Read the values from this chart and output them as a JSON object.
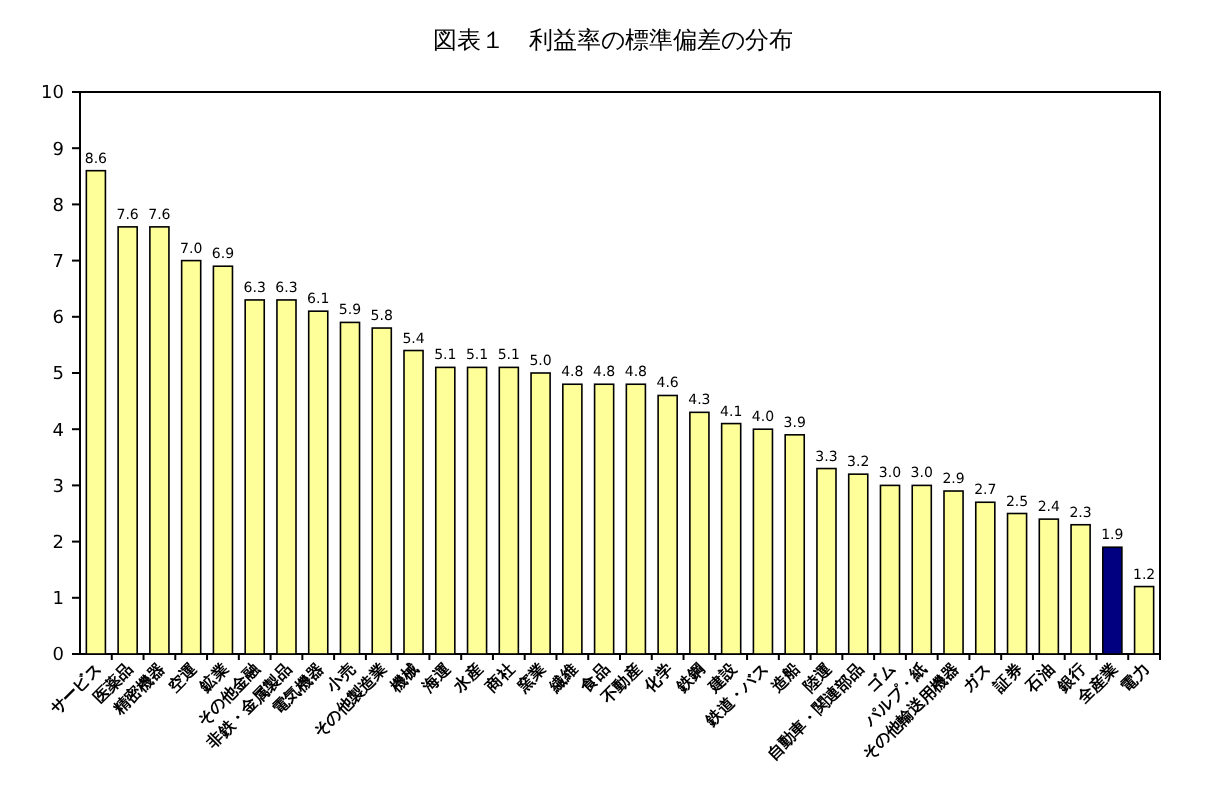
{
  "chart_data": {
    "type": "bar",
    "title": "図表１　利益率の標準偏差の分布",
    "categories": [
      "サービス",
      "医薬品",
      "精密機器",
      "空運",
      "鉱業",
      "その他金融",
      "非鉄・金属製品",
      "電気機器",
      "小売",
      "その他製造業",
      "機械",
      "海運",
      "水産",
      "商社",
      "窯業",
      "繊維",
      "食品",
      "不動産",
      "化学",
      "鉄鋼",
      "建設",
      "鉄道・バス",
      "造船",
      "陸運",
      "自動車・関連部品",
      "ゴム",
      "パルプ・紙",
      "その他輸送用機器",
      "ガス",
      "証券",
      "石油",
      "銀行",
      "全産業",
      "電力"
    ],
    "values": [
      8.6,
      7.6,
      7.6,
      7.0,
      6.9,
      6.3,
      6.3,
      6.1,
      5.9,
      5.8,
      5.4,
      5.1,
      5.1,
      5.1,
      5.0,
      4.8,
      4.8,
      4.8,
      4.6,
      4.3,
      4.1,
      4.0,
      3.9,
      3.3,
      3.2,
      3.0,
      3.0,
      2.9,
      2.7,
      2.5,
      2.4,
      2.3,
      1.9,
      1.2
    ],
    "colors": [
      "#ffff99",
      "#ffff99",
      "#ffff99",
      "#ffff99",
      "#ffff99",
      "#ffff99",
      "#ffff99",
      "#ffff99",
      "#ffff99",
      "#ffff99",
      "#ffff99",
      "#ffff99",
      "#ffff99",
      "#ffff99",
      "#ffff99",
      "#ffff99",
      "#ffff99",
      "#ffff99",
      "#ffff99",
      "#ffff99",
      "#ffff99",
      "#ffff99",
      "#ffff99",
      "#ffff99",
      "#ffff99",
      "#ffff99",
      "#ffff99",
      "#ffff99",
      "#ffff99",
      "#ffff99",
      "#ffff99",
      "#ffff99",
      "#000080",
      "#ffff99"
    ],
    "value_labels": [
      "8.6",
      "7.6",
      "7.6",
      "7.0",
      "6.9",
      "6.3",
      "6.3",
      "6.1",
      "5.9",
      "5.8",
      "5.4",
      "5.1",
      "5.1",
      "5.1",
      "5.0",
      "4.8",
      "4.8",
      "4.8",
      "4.6",
      "4.3",
      "4.1",
      "4.0",
      "3.9",
      "3.3",
      "3.2",
      "3.0",
      "3.0",
      "2.9",
      "2.7",
      "2.5",
      "2.4",
      "2.3",
      "1.9",
      "1.2"
    ],
    "ylim": [
      0,
      10
    ],
    "yticks": [
      0,
      1,
      2,
      3,
      4,
      5,
      6,
      7,
      8,
      9,
      10
    ],
    "grid": false
  }
}
